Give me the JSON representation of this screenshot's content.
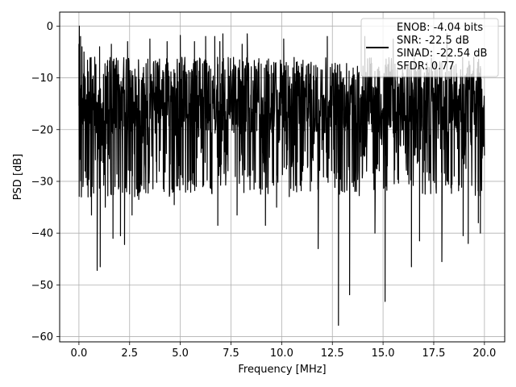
{
  "chart_data": {
    "type": "line",
    "title": "",
    "xlabel": "Frequency [MHz]",
    "ylabel": "PSD [dB]",
    "xlim": [
      -0.95,
      21.0
    ],
    "ylim": [
      -61.0,
      2.7
    ],
    "xticks": [
      0.0,
      2.5,
      5.0,
      7.5,
      10.0,
      12.5,
      15.0,
      17.5,
      20.0
    ],
    "xtick_labels": [
      "0.0",
      "2.5",
      "5.0",
      "7.5",
      "10.0",
      "12.5",
      "15.0",
      "17.5",
      "20.0"
    ],
    "yticks": [
      0,
      -10,
      -20,
      -30,
      -40,
      -50,
      -60
    ],
    "ytick_labels": [
      "0",
      "−10",
      "−20",
      "−30",
      "−40",
      "−50",
      "−60"
    ],
    "grid": true,
    "legend": {
      "placement": "top-right",
      "entries": [
        "ENOB: -4.04 bits",
        "SNR: -22.5 dB",
        "SINAD: -22.54 dB",
        "SFDR: 0.77"
      ]
    },
    "series": [
      {
        "color": "#000000",
        "noise_band_db": [
          -33,
          -6
        ],
        "x": [
          0.0,
          0.02,
          0.05,
          0.08,
          0.12,
          0.15,
          0.2,
          0.25,
          0.3,
          0.45,
          0.55,
          0.62,
          0.78,
          0.9,
          1.02,
          1.05,
          1.3,
          1.6,
          1.68,
          1.78,
          2.05,
          2.25,
          2.4,
          2.62,
          2.95,
          3.5,
          4.35,
          4.7,
          5.0,
          5.7,
          6.25,
          6.7,
          6.85,
          6.95,
          7.1,
          7.8,
          8.05,
          8.3,
          9.2,
          9.75,
          10.1,
          11.8,
          12.25,
          12.8,
          13.35,
          14.1,
          14.6,
          15.1,
          15.5,
          16.4,
          16.8,
          17.9,
          18.15,
          18.95,
          19.2,
          19.7,
          19.8,
          20.0
        ],
        "y": [
          -3.5,
          0.0,
          -15.0,
          -2.0,
          -33.0,
          -4.0,
          -31.0,
          -5.0,
          -28.0,
          -33.0,
          -6.5,
          -36.5,
          -6.0,
          -47.2,
          -4.0,
          -46.5,
          -35.0,
          -3.5,
          -41.0,
          -31.0,
          -40.5,
          -42.2,
          -3.0,
          -36.5,
          -33.5,
          -2.5,
          -3.0,
          -34.5,
          -1.8,
          -3.0,
          -2.0,
          -2.0,
          -38.5,
          -3.0,
          -1.5,
          -36.5,
          -3.5,
          -1.5,
          -38.5,
          -35.0,
          -2.5,
          -43.0,
          -2.0,
          -57.8,
          -51.9,
          -2.0,
          -40.0,
          -53.2,
          -2.5,
          -46.5,
          -41.5,
          -45.5,
          -1.5,
          -40.5,
          -42.0,
          -38.0,
          -40.0,
          -25.0
        ]
      }
    ]
  }
}
